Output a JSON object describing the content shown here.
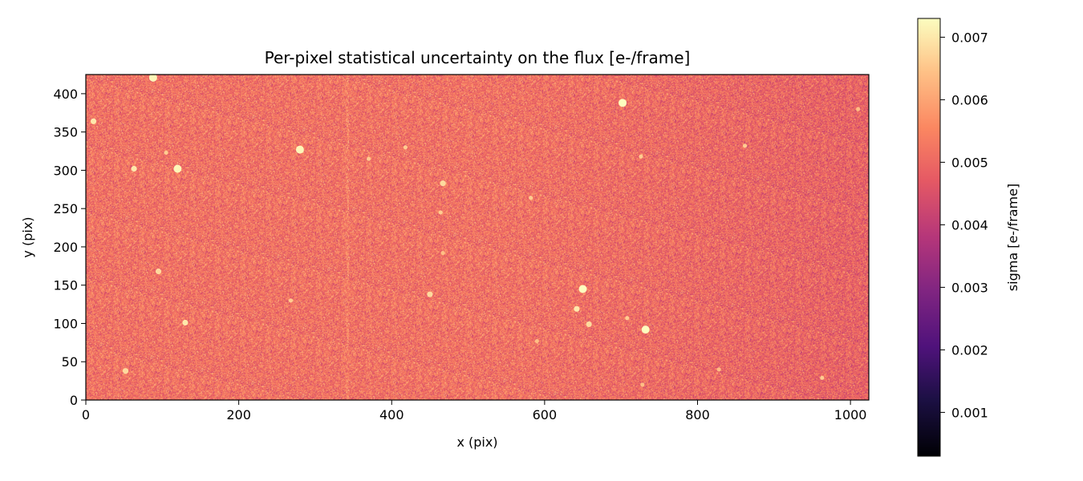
{
  "chart_data": {
    "type": "heatmap",
    "title": "Per-pixel statistical uncertainty on the flux [e-/frame]",
    "xlabel": "x (pix)",
    "ylabel": "y (pix)",
    "xlim": [
      0,
      1024
    ],
    "ylim": [
      0,
      425
    ],
    "x_ticks": [
      0,
      200,
      400,
      600,
      800,
      1000
    ],
    "y_ticks": [
      0,
      50,
      100,
      150,
      200,
      250,
      300,
      350,
      400
    ],
    "colormap": "magma",
    "colorbar": {
      "label": "sigma [e-/frame]",
      "range": [
        0.0003,
        0.0073
      ],
      "ticks": [
        0.001,
        0.002,
        0.003,
        0.004,
        0.005,
        0.006,
        0.007
      ],
      "tick_labels": [
        "0.001",
        "0.002",
        "0.003",
        "0.004",
        "0.005",
        "0.006",
        "0.007"
      ]
    },
    "background": {
      "typical_sigma": 0.0052,
      "noise_amplitude": 0.0009,
      "right_side_sigma": 0.0049
    },
    "bright_spots": [
      {
        "x": 88,
        "y": 421,
        "sigma": 0.0072
      },
      {
        "x": 10,
        "y": 364,
        "sigma": 0.007
      },
      {
        "x": 63,
        "y": 302,
        "sigma": 0.007
      },
      {
        "x": 120,
        "y": 302,
        "sigma": 0.0072
      },
      {
        "x": 105,
        "y": 323,
        "sigma": 0.0066
      },
      {
        "x": 280,
        "y": 327,
        "sigma": 0.0072
      },
      {
        "x": 370,
        "y": 315,
        "sigma": 0.0066
      },
      {
        "x": 418,
        "y": 330,
        "sigma": 0.0066
      },
      {
        "x": 467,
        "y": 283,
        "sigma": 0.0068
      },
      {
        "x": 464,
        "y": 245,
        "sigma": 0.0066
      },
      {
        "x": 467,
        "y": 192,
        "sigma": 0.0064
      },
      {
        "x": 582,
        "y": 264,
        "sigma": 0.0066
      },
      {
        "x": 702,
        "y": 388,
        "sigma": 0.0073
      },
      {
        "x": 726,
        "y": 318,
        "sigma": 0.0066
      },
      {
        "x": 862,
        "y": 332,
        "sigma": 0.0066
      },
      {
        "x": 95,
        "y": 168,
        "sigma": 0.0068
      },
      {
        "x": 130,
        "y": 101,
        "sigma": 0.007
      },
      {
        "x": 268,
        "y": 130,
        "sigma": 0.0066
      },
      {
        "x": 450,
        "y": 138,
        "sigma": 0.0068
      },
      {
        "x": 650,
        "y": 145,
        "sigma": 0.0073
      },
      {
        "x": 642,
        "y": 119,
        "sigma": 0.007
      },
      {
        "x": 658,
        "y": 99,
        "sigma": 0.0068
      },
      {
        "x": 708,
        "y": 107,
        "sigma": 0.0066
      },
      {
        "x": 732,
        "y": 92,
        "sigma": 0.0073
      },
      {
        "x": 590,
        "y": 77,
        "sigma": 0.0064
      },
      {
        "x": 52,
        "y": 38,
        "sigma": 0.0068
      },
      {
        "x": 828,
        "y": 40,
        "sigma": 0.0064
      },
      {
        "x": 963,
        "y": 29,
        "sigma": 0.0066
      },
      {
        "x": 728,
        "y": 20,
        "sigma": 0.0064
      },
      {
        "x": 1010,
        "y": 380,
        "sigma": 0.0064
      }
    ],
    "bright_columns": [
      {
        "x": 342,
        "sigma_excess": 0.0006
      },
      {
        "x": 497,
        "sigma_excess": 0.0003
      }
    ]
  }
}
